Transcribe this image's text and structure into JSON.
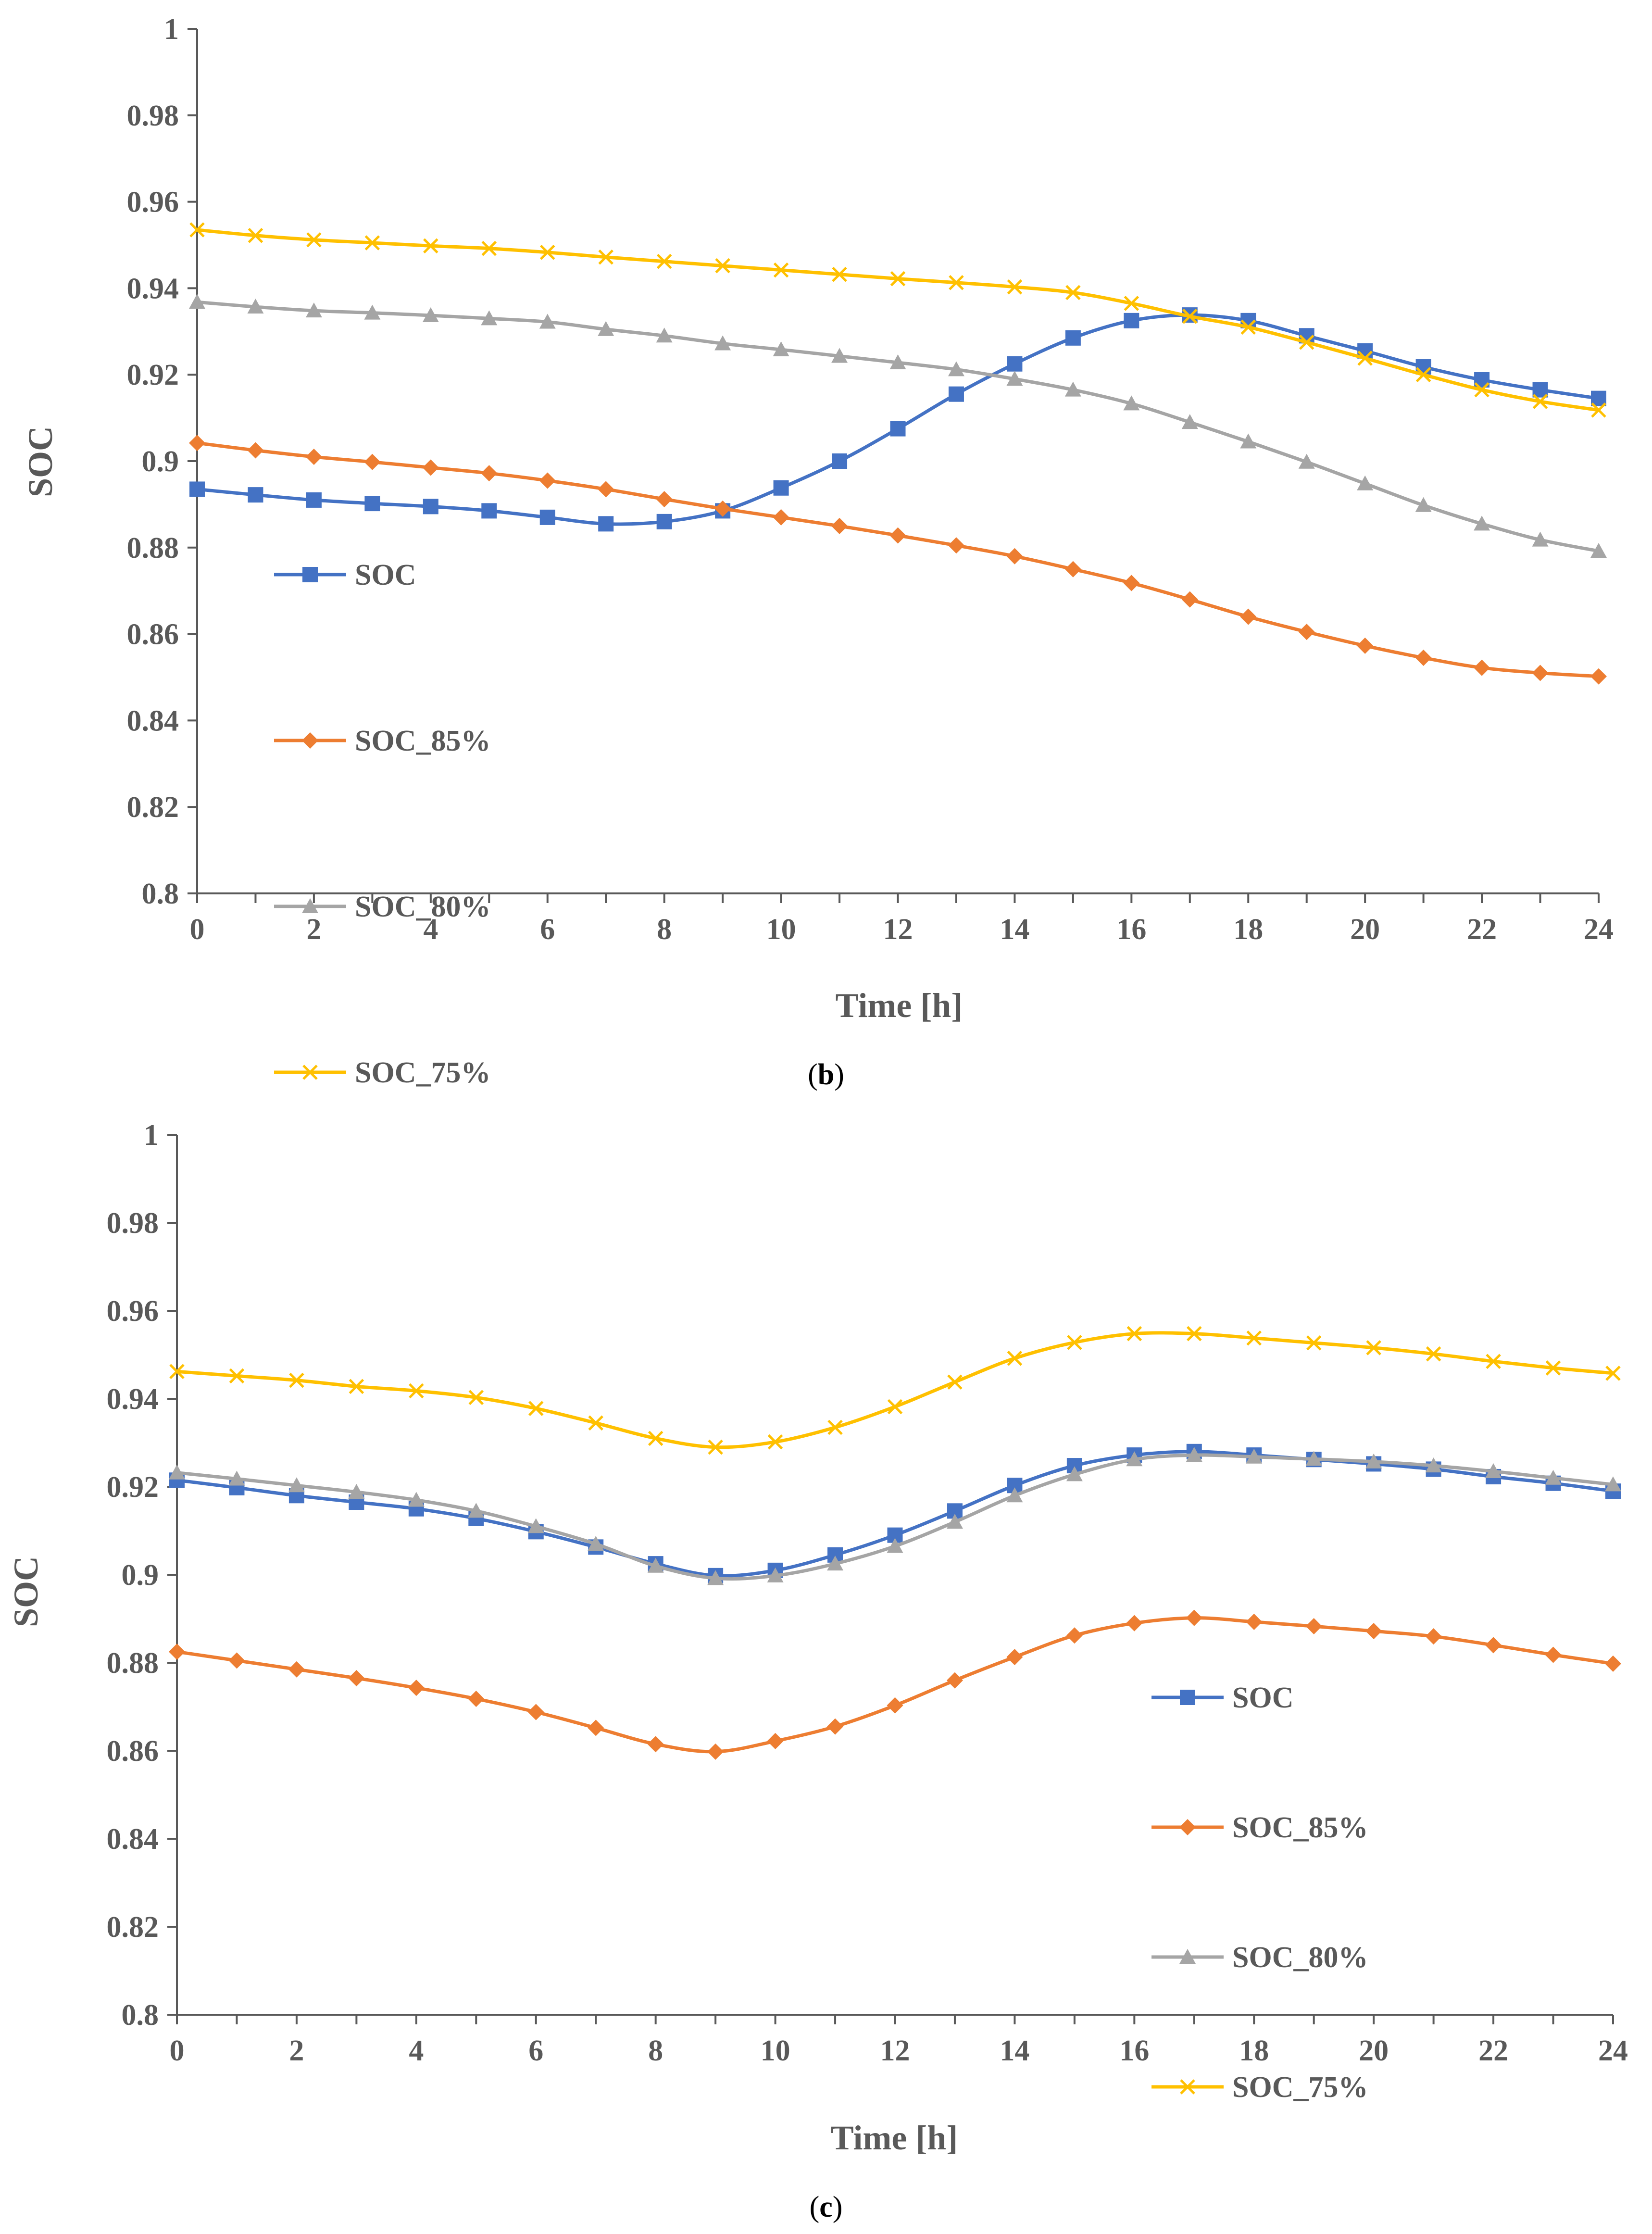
{
  "colors": {
    "SOC": "#4472C4",
    "SOC_85%": "#ED7D31",
    "SOC_80%": "#A5A5A5",
    "SOC_75%": "#FFC000",
    "axis": "#595959"
  },
  "chart_data": [
    {
      "type": "line",
      "panel": "b",
      "caption": {
        "open": "(",
        "letter": "b",
        "close": ")"
      },
      "title": "",
      "xlabel": "Time [h]",
      "ylabel": "SOC",
      "xlim": [
        0,
        24
      ],
      "ylim": [
        0.8,
        1
      ],
      "x_ticks": [
        "0",
        "2",
        "4",
        "6",
        "8",
        "10",
        "12",
        "14",
        "16",
        "18",
        "20",
        "22",
        "24"
      ],
      "y_ticks": [
        "0.8",
        "0.82",
        "0.84",
        "0.86",
        "0.88",
        "0.9",
        "0.92",
        "0.94",
        "0.96",
        "0.98",
        "1"
      ],
      "legend_position": "middle-left",
      "x": [
        0,
        1,
        2,
        3,
        4,
        5,
        6,
        7,
        8,
        9,
        10,
        11,
        12,
        13,
        14,
        15,
        16,
        17,
        18,
        19,
        20,
        21,
        22,
        23,
        24
      ],
      "series": [
        {
          "name": "SOC",
          "marker": "square",
          "color_key": "SOC",
          "values": [
            0.8935,
            0.8922,
            0.891,
            0.8902,
            0.8895,
            0.8885,
            0.887,
            0.8855,
            0.886,
            0.8885,
            0.8938,
            0.9,
            0.9075,
            0.9155,
            0.9225,
            0.9285,
            0.9325,
            0.9338,
            0.9325,
            0.929,
            0.9255,
            0.9218,
            0.9188,
            0.9165,
            0.9145
          ]
        },
        {
          "name": "SOC_85%",
          "marker": "diamond",
          "color_key": "SOC_85%",
          "values": [
            0.9042,
            0.9025,
            0.901,
            0.8998,
            0.8985,
            0.8972,
            0.8955,
            0.8935,
            0.8912,
            0.889,
            0.887,
            0.885,
            0.8828,
            0.8805,
            0.878,
            0.875,
            0.8718,
            0.868,
            0.864,
            0.8605,
            0.8573,
            0.8545,
            0.8522,
            0.851,
            0.8502
          ]
        },
        {
          "name": "SOC_80%",
          "marker": "triangle",
          "color_key": "SOC_80%",
          "values": [
            0.9368,
            0.9357,
            0.9348,
            0.9343,
            0.9337,
            0.933,
            0.9322,
            0.9305,
            0.929,
            0.9272,
            0.9258,
            0.9243,
            0.9228,
            0.9212,
            0.919,
            0.9165,
            0.9133,
            0.909,
            0.9045,
            0.8998,
            0.8948,
            0.8898,
            0.8855,
            0.8818,
            0.8792
          ]
        },
        {
          "name": "SOC_75%",
          "marker": "x",
          "color_key": "SOC_75%",
          "values": [
            0.9535,
            0.9522,
            0.9512,
            0.9505,
            0.9498,
            0.9492,
            0.9483,
            0.9472,
            0.9462,
            0.9452,
            0.9442,
            0.9432,
            0.9422,
            0.9413,
            0.9403,
            0.939,
            0.9365,
            0.9335,
            0.931,
            0.9275,
            0.9238,
            0.92,
            0.9165,
            0.9138,
            0.9118
          ]
        }
      ]
    },
    {
      "type": "line",
      "panel": "c",
      "caption": {
        "open": "(",
        "letter": "c",
        "close": ")"
      },
      "title": "",
      "xlabel": "Time [h]",
      "ylabel": "SOC",
      "xlim": [
        0,
        24
      ],
      "ylim": [
        0.8,
        1
      ],
      "x_ticks": [
        "0",
        "2",
        "4",
        "6",
        "8",
        "10",
        "12",
        "14",
        "16",
        "18",
        "20",
        "22",
        "24"
      ],
      "y_ticks": [
        "0.8",
        "0.82",
        "0.84",
        "0.86",
        "0.88",
        "0.9",
        "0.92",
        "0.94",
        "0.96",
        "0.98",
        "1"
      ],
      "legend_position": "bottom-right",
      "x": [
        0,
        1,
        2,
        3,
        4,
        5,
        6,
        7,
        8,
        9,
        10,
        11,
        12,
        13,
        14,
        15,
        16,
        17,
        18,
        19,
        20,
        21,
        22,
        23,
        24
      ],
      "series": [
        {
          "name": "SOC",
          "marker": "square",
          "color_key": "SOC",
          "values": [
            0.9215,
            0.9198,
            0.918,
            0.9165,
            0.915,
            0.9128,
            0.9098,
            0.9063,
            0.9025,
            0.8998,
            0.901,
            0.9045,
            0.909,
            0.9145,
            0.9203,
            0.9248,
            0.9272,
            0.928,
            0.9272,
            0.9262,
            0.9252,
            0.924,
            0.9223,
            0.9208,
            0.919
          ]
        },
        {
          "name": "SOC_85%",
          "marker": "diamond",
          "color_key": "SOC_85%",
          "values": [
            0.8825,
            0.8805,
            0.8785,
            0.8765,
            0.8743,
            0.8718,
            0.8688,
            0.8652,
            0.8615,
            0.8598,
            0.8622,
            0.8655,
            0.8703,
            0.876,
            0.8813,
            0.8862,
            0.889,
            0.8902,
            0.8893,
            0.8883,
            0.8872,
            0.886,
            0.884,
            0.8818,
            0.8798
          ]
        },
        {
          "name": "SOC_80%",
          "marker": "triangle",
          "color_key": "SOC_80%",
          "values": [
            0.9232,
            0.9218,
            0.9203,
            0.9188,
            0.917,
            0.9145,
            0.911,
            0.907,
            0.902,
            0.8992,
            0.8998,
            0.9025,
            0.9065,
            0.912,
            0.918,
            0.9228,
            0.9262,
            0.9272,
            0.9268,
            0.9263,
            0.9257,
            0.9248,
            0.9235,
            0.922,
            0.9205
          ]
        },
        {
          "name": "SOC_75%",
          "marker": "x",
          "color_key": "SOC_75%",
          "values": [
            0.9462,
            0.9452,
            0.9442,
            0.9428,
            0.9418,
            0.9403,
            0.9378,
            0.9345,
            0.931,
            0.929,
            0.9302,
            0.9335,
            0.9382,
            0.9438,
            0.9492,
            0.9528,
            0.9548,
            0.9548,
            0.9538,
            0.9527,
            0.9516,
            0.9502,
            0.9485,
            0.947,
            0.9458
          ]
        }
      ]
    }
  ]
}
